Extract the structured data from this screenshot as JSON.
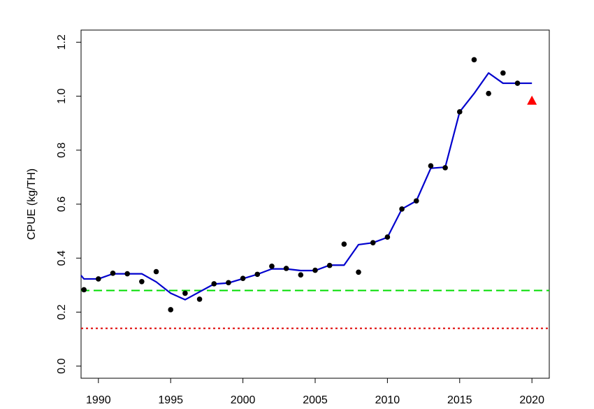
{
  "chart_data": {
    "type": "scatter",
    "title": "",
    "xlabel": "",
    "ylabel": "CPUE (kg/TH)",
    "xlim": [
      1988.8,
      2021.2
    ],
    "ylim": [
      -0.045,
      1.245
    ],
    "x_ticks": [
      1990,
      1995,
      2000,
      2005,
      2010,
      2015,
      2020
    ],
    "y_ticks": [
      0.0,
      0.2,
      0.4,
      0.6,
      0.8,
      1.0,
      1.2
    ],
    "x_tick_labels": [
      "1990",
      "1995",
      "2000",
      "2005",
      "2010",
      "2015",
      "2020"
    ],
    "y_tick_labels": [
      "0.0",
      "0.2",
      "0.4",
      "0.6",
      "0.8",
      "1.0",
      "1.2"
    ],
    "grid": false,
    "series": [
      {
        "kind": "points",
        "color": "#000000",
        "x": [
          1989,
          1990,
          1991,
          1992,
          1993,
          1994,
          1995,
          1996,
          1997,
          1998,
          1999,
          2000,
          2001,
          2002,
          2003,
          2004,
          2005,
          2006,
          2007,
          2008,
          2009,
          2010,
          2011,
          2012,
          2013,
          2014,
          2015,
          2016,
          2017,
          2018,
          2019
        ],
        "y": [
          0.283,
          0.323,
          0.344,
          0.342,
          0.313,
          0.35,
          0.209,
          0.27,
          0.248,
          0.305,
          0.309,
          0.325,
          0.34,
          0.37,
          0.362,
          0.338,
          0.355,
          0.373,
          0.452,
          0.348,
          0.457,
          0.478,
          0.582,
          0.612,
          0.742,
          0.735,
          0.942,
          1.135,
          1.01,
          1.086,
          1.048
        ]
      },
      {
        "kind": "line",
        "color": "#0000cd",
        "x": [
          1988.8,
          1989,
          1990,
          1991,
          1992,
          1993,
          1994,
          1995,
          1996,
          1997,
          1998,
          1999,
          2000,
          2001,
          2002,
          2003,
          2004,
          2005,
          2006,
          2007,
          2008,
          2009,
          2010,
          2011,
          2012,
          2013,
          2014,
          2015,
          2016,
          2017,
          2018,
          2019,
          2020
        ],
        "y": [
          0.336,
          0.323,
          0.323,
          0.342,
          0.342,
          0.342,
          0.312,
          0.27,
          0.246,
          0.275,
          0.304,
          0.308,
          0.324,
          0.34,
          0.36,
          0.36,
          0.354,
          0.354,
          0.374,
          0.374,
          0.45,
          0.457,
          0.477,
          0.582,
          0.612,
          0.733,
          0.737,
          0.942,
          1.01,
          1.086,
          1.048,
          1.048,
          1.048
        ]
      },
      {
        "kind": "triangle",
        "color": "#ff0000",
        "x": [
          2020
        ],
        "y": [
          0.982
        ]
      },
      {
        "kind": "hline",
        "color": "#00dd00",
        "style": "dashed",
        "y": 0.28
      },
      {
        "kind": "hline",
        "color": "#dd0000",
        "style": "dotted",
        "y": 0.14
      }
    ]
  }
}
